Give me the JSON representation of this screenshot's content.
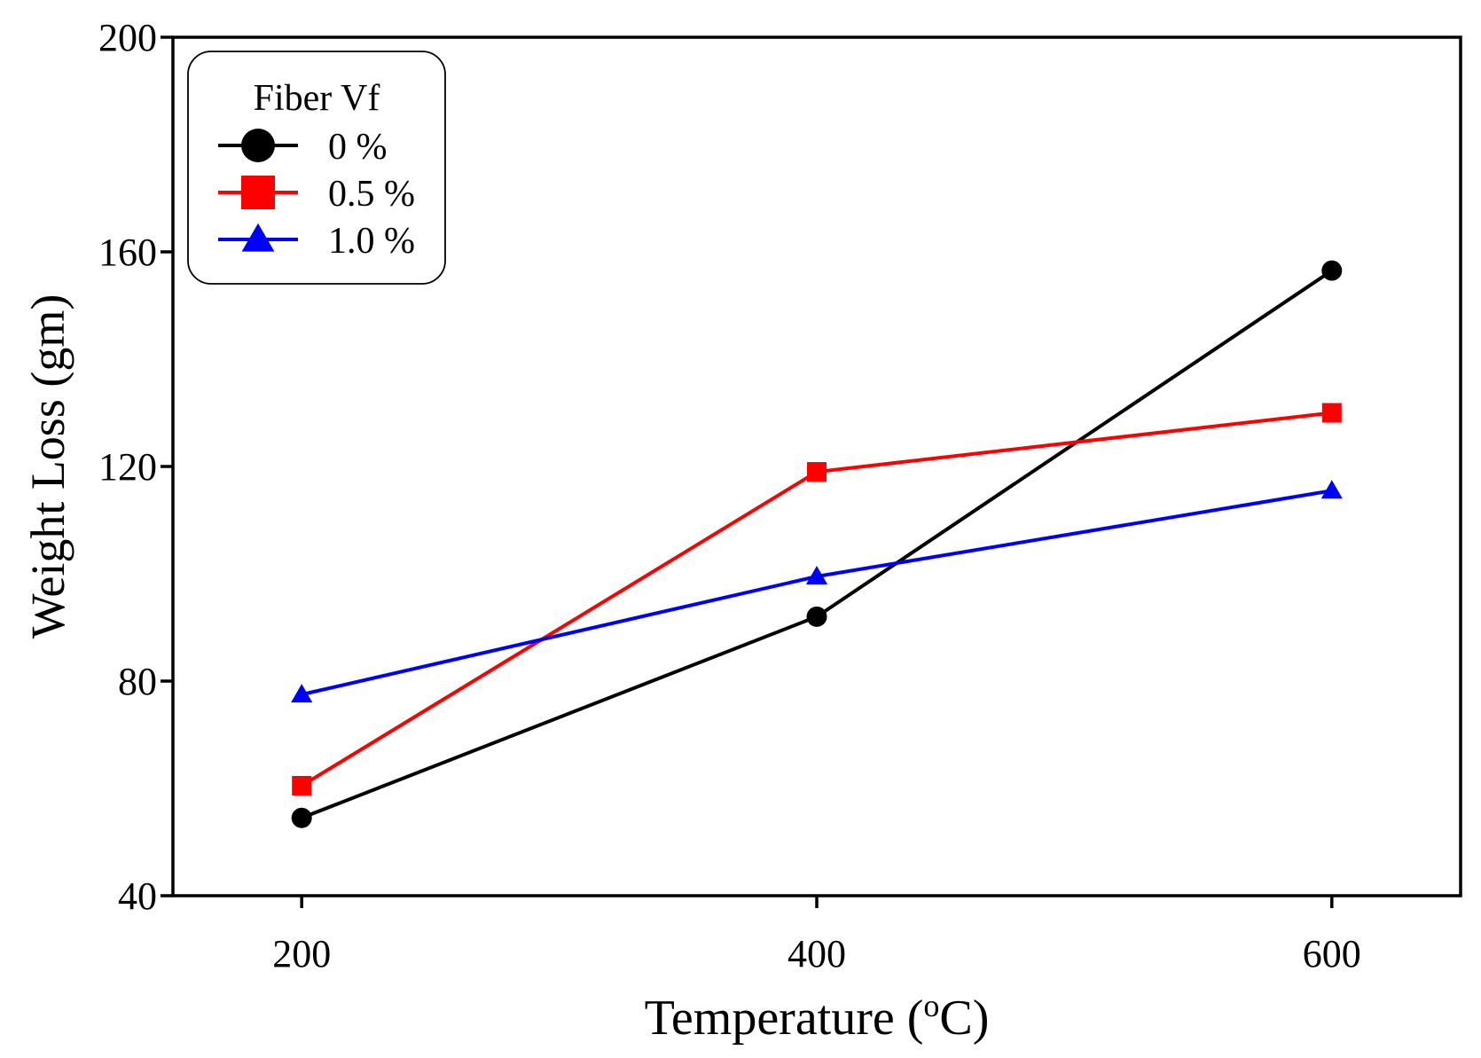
{
  "chart_data": {
    "type": "line",
    "title": "",
    "xlabel": "Temperature (",
    "xlabel_sup": "o",
    "xlabel_tail": "C)",
    "ylabel": "Weight Loss (gm)",
    "categories": [
      "200",
      "400",
      "600"
    ],
    "x": [
      200,
      400,
      600
    ],
    "xlim": [
      150,
      650
    ],
    "ylim": [
      40,
      200
    ],
    "yticks": [
      40,
      80,
      120,
      160,
      200
    ],
    "xticks": [
      200,
      400,
      600
    ],
    "grid": false,
    "legend": {
      "title": "Fiber Vf",
      "placement": "top-left"
    },
    "series": [
      {
        "name": "0 %",
        "marker": "circle",
        "color": "#000000",
        "values": [
          54.5,
          92,
          156.5
        ]
      },
      {
        "name": "0.5 %",
        "marker": "square",
        "color": "#ff0000",
        "values": [
          60.5,
          119,
          130
        ]
      },
      {
        "name": "1.0 %",
        "marker": "triangle",
        "color": "#0000ff",
        "values": [
          77.5,
          99.5,
          115.5
        ]
      }
    ]
  }
}
